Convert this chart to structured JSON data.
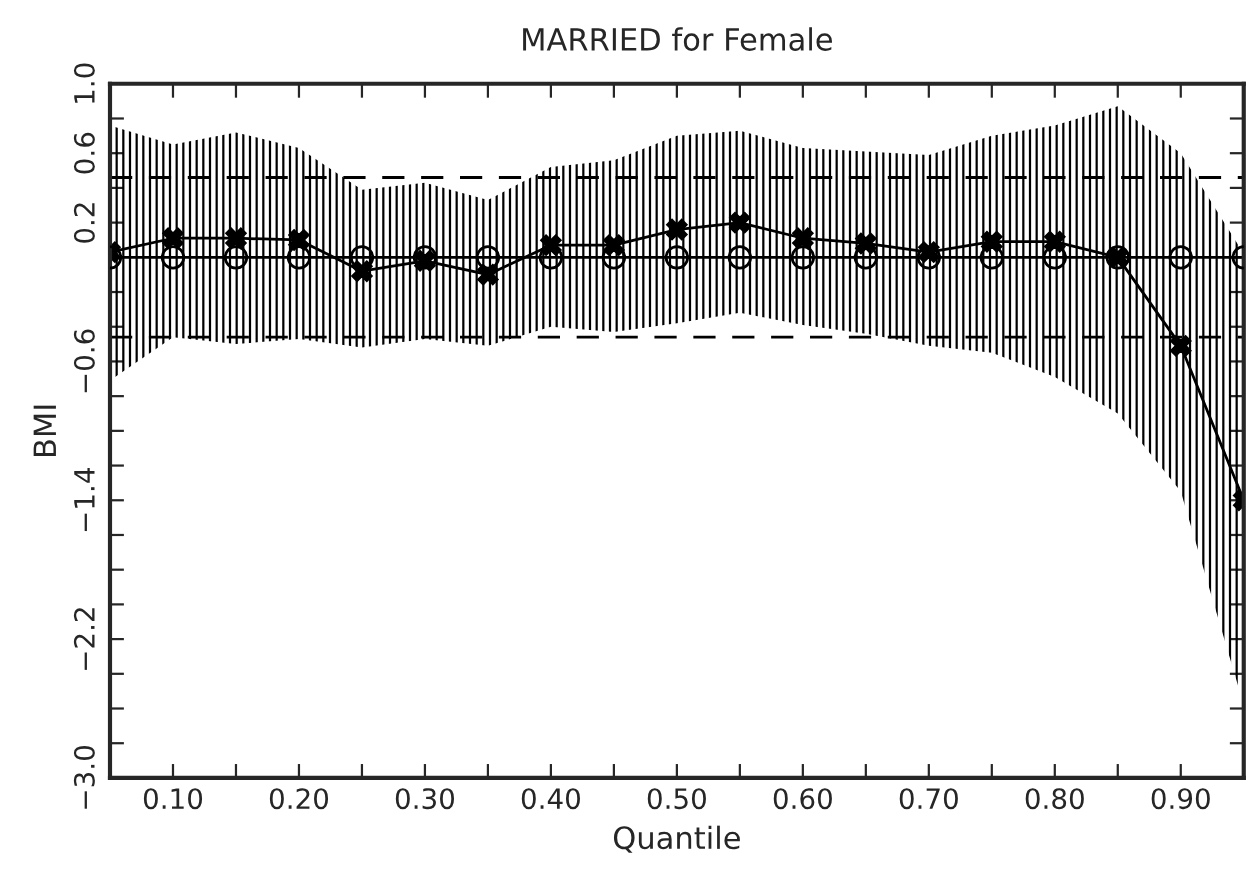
{
  "chart_data": {
    "type": "line",
    "title": "MARRIED for Female",
    "xlabel": "Quantile",
    "ylabel": "BMI",
    "x": [
      0.05,
      0.1,
      0.15,
      0.2,
      0.25,
      0.3,
      0.35,
      0.4,
      0.45,
      0.5,
      0.55,
      0.6,
      0.65,
      0.7,
      0.75,
      0.8,
      0.85,
      0.9,
      0.95
    ],
    "series": [
      {
        "color": "#000000",
        "marker": "cross",
        "line_style": "solid",
        "values": [
          0.03,
          0.11,
          0.11,
          0.1,
          -0.08,
          -0.02,
          -0.1,
          0.07,
          0.07,
          0.16,
          0.2,
          0.11,
          0.08,
          0.03,
          0.09,
          0.09,
          0.0,
          -0.51,
          -1.4
        ],
        "lower": [
          -0.71,
          -0.46,
          -0.5,
          -0.47,
          -0.52,
          -0.47,
          -0.51,
          -0.4,
          -0.43,
          -0.38,
          -0.32,
          -0.39,
          -0.44,
          -0.51,
          -0.55,
          -0.69,
          -0.9,
          -1.35,
          -2.58
        ],
        "upper": [
          0.76,
          0.65,
          0.72,
          0.63,
          0.39,
          0.43,
          0.33,
          0.52,
          0.56,
          0.7,
          0.73,
          0.63,
          0.61,
          0.59,
          0.7,
          0.76,
          0.87,
          0.6,
          0.02
        ]
      },
      {
        "type": "scatter",
        "color": "#000000",
        "marker": "circle",
        "values": [
          0,
          0,
          0,
          0,
          0,
          0,
          0,
          0,
          0,
          0,
          0,
          0,
          0,
          0,
          0,
          0,
          0,
          0,
          0
        ]
      }
    ],
    "ref_lines": [
      {
        "axis": "y",
        "value": 0,
        "color": "#000000",
        "line_style": "solid"
      },
      {
        "axis": "y",
        "value": 0.46,
        "color": "#000000",
        "line_style": "dashed"
      },
      {
        "axis": "y",
        "value": -0.46,
        "color": "#000000",
        "line_style": "dashed"
      }
    ],
    "xlim": [
      0.05,
      0.95
    ],
    "xticks": [
      {
        "value": 0.1,
        "label": "0.10"
      },
      {
        "value": 0.15,
        "label": null
      },
      {
        "value": 0.2,
        "label": "0.20"
      },
      {
        "value": 0.25,
        "label": null
      },
      {
        "value": 0.3,
        "label": "0.30"
      },
      {
        "value": 0.35,
        "label": null
      },
      {
        "value": 0.4,
        "label": "0.40"
      },
      {
        "value": 0.45,
        "label": null
      },
      {
        "value": 0.5,
        "label": "0.50"
      },
      {
        "value": 0.55,
        "label": null
      },
      {
        "value": 0.6,
        "label": "0.60"
      },
      {
        "value": 0.65,
        "label": null
      },
      {
        "value": 0.7,
        "label": "0.70"
      },
      {
        "value": 0.75,
        "label": null
      },
      {
        "value": 0.8,
        "label": "0.80"
      },
      {
        "value": 0.85,
        "label": null
      },
      {
        "value": 0.9,
        "label": "0.90"
      }
    ],
    "ylim": [
      -3.0,
      1.0
    ],
    "yticks": [
      {
        "value": -3.0,
        "label": "−3.0"
      },
      {
        "value": -2.8,
        "label": null
      },
      {
        "value": -2.6,
        "label": null
      },
      {
        "value": -2.4,
        "label": null
      },
      {
        "value": -2.2,
        "label": "−2.2"
      },
      {
        "value": -2.0,
        "label": null
      },
      {
        "value": -1.8,
        "label": null
      },
      {
        "value": -1.6,
        "label": null
      },
      {
        "value": -1.4,
        "label": "−1.4"
      },
      {
        "value": -1.2,
        "label": null
      },
      {
        "value": -1.0,
        "label": null
      },
      {
        "value": -0.8,
        "label": null
      },
      {
        "value": -0.6,
        "label": "−0.6"
      },
      {
        "value": -0.4,
        "label": null
      },
      {
        "value": -0.2,
        "label": null
      },
      {
        "value": 0.0,
        "label": null
      },
      {
        "value": 0.2,
        "label": "0.2"
      },
      {
        "value": 0.4,
        "label": null
      },
      {
        "value": 0.6,
        "label": "0.6"
      },
      {
        "value": 0.8,
        "label": null
      },
      {
        "value": 1.0,
        "label": "1.0"
      }
    ],
    "grid": false,
    "legend": false
  }
}
